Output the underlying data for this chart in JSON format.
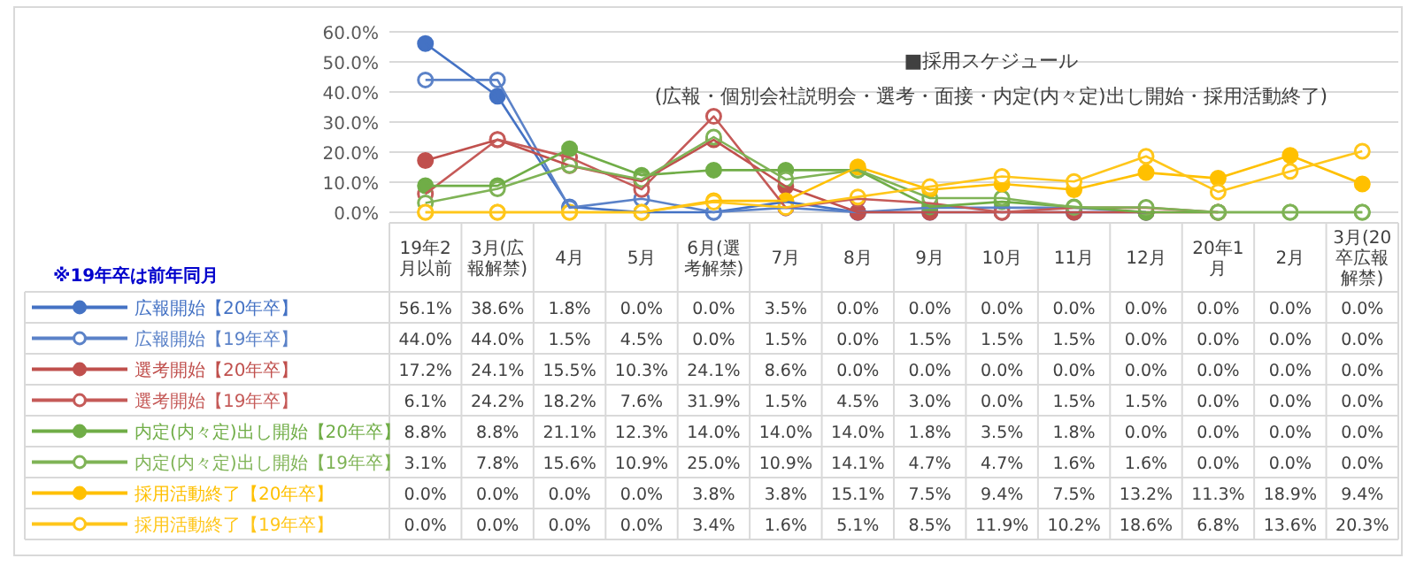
{
  "chart_data": {
    "type": "line",
    "title": "■採用スケジュール",
    "subtitle": "(広報・個別会社説明会・選考・面接・内定(内々定)出し開始・採用活動終了)",
    "annotations": [
      "※19年卒は前年同月"
    ],
    "categories": [
      "19年2月以前",
      "3月(広報解禁)",
      "4月",
      "5月",
      "6月(選考解禁)",
      "7月",
      "8月",
      "9月",
      "10月",
      "11月",
      "12月",
      "20年1月",
      "2月",
      "3月(20卒広報解禁)"
    ],
    "ylim": [
      0,
      60
    ],
    "yticks": [
      {
        "value": 0,
        "label": "0.0%"
      },
      {
        "value": 10,
        "label": "10.0%"
      },
      {
        "value": 20,
        "label": "20.0%"
      },
      {
        "value": 30,
        "label": "30.0%"
      },
      {
        "value": 40,
        "label": "40.0%"
      },
      {
        "value": 50,
        "label": "50.0%"
      },
      {
        "value": 60,
        "label": "60.0%"
      }
    ],
    "grid": "y",
    "legend": "bottom",
    "marker": "circle",
    "series": [
      {
        "name": "広報開始【20年卒】",
        "color": "#4472c4",
        "values": [
          56.1,
          38.6,
          1.8,
          0.0,
          0.0,
          3.5,
          0.0,
          0.0,
          0.0,
          0.0,
          0.0,
          null,
          null,
          null
        ],
        "value_labels": [
          "56.1%",
          "38.6%",
          "1.8%",
          "0.0%",
          "0.0%",
          "3.5%",
          "0.0%",
          "0.0%",
          "0.0%",
          "0.0%",
          "0.0%",
          "0.0%",
          "0.0%",
          "0.0%"
        ]
      },
      {
        "name": "広報開始【19年卒】",
        "color": "#5b82c8",
        "values": [
          44.0,
          44.0,
          1.5,
          4.5,
          0.0,
          1.5,
          0.0,
          1.5,
          1.5,
          1.5,
          0.0,
          null,
          null,
          null
        ],
        "value_labels": [
          "44.0%",
          "44.0%",
          "1.5%",
          "4.5%",
          "0.0%",
          "1.5%",
          "0.0%",
          "1.5%",
          "1.5%",
          "1.5%",
          "0.0%",
          "0.0%",
          "0.0%",
          "0.0%"
        ]
      },
      {
        "name": "選考開始【20年卒】",
        "color": "#c0504d",
        "values": [
          17.2,
          24.1,
          15.5,
          10.3,
          24.1,
          8.6,
          0.0,
          0.0,
          0.0,
          0.0,
          0.0,
          0.0,
          null,
          null
        ],
        "value_labels": [
          "17.2%",
          "24.1%",
          "15.5%",
          "10.3%",
          "24.1%",
          "8.6%",
          "0.0%",
          "0.0%",
          "0.0%",
          "0.0%",
          "0.0%",
          "0.0%",
          "0.0%",
          "0.0%"
        ]
      },
      {
        "name": "選考開始【19年卒】",
        "color": "#c55a58",
        "values": [
          6.1,
          24.2,
          18.2,
          7.6,
          31.9,
          1.5,
          4.5,
          3.0,
          0.0,
          1.5,
          1.5,
          0.0,
          null,
          null
        ],
        "value_labels": [
          "6.1%",
          "24.2%",
          "18.2%",
          "7.6%",
          "31.9%",
          "1.5%",
          "4.5%",
          "3.0%",
          "0.0%",
          "1.5%",
          "1.5%",
          "0.0%",
          "0.0%",
          "0.0%"
        ]
      },
      {
        "name": "内定(内々定)出し開始【20年卒】",
        "color": "#70ad47",
        "values": [
          8.8,
          8.8,
          21.1,
          12.3,
          14.0,
          14.0,
          14.0,
          1.8,
          3.5,
          1.8,
          0.0,
          0.0,
          0.0,
          0.0
        ],
        "value_labels": [
          "8.8%",
          "8.8%",
          "21.1%",
          "12.3%",
          "14.0%",
          "14.0%",
          "14.0%",
          "1.8%",
          "3.5%",
          "1.8%",
          "0.0%",
          "0.0%",
          "0.0%",
          "0.0%"
        ]
      },
      {
        "name": "内定(内々定)出し開始【19年卒】",
        "color": "#7fb356",
        "values": [
          3.1,
          7.8,
          15.6,
          10.9,
          25.0,
          10.9,
          14.1,
          4.7,
          4.7,
          1.6,
          1.6,
          0.0,
          0.0,
          0.0
        ],
        "value_labels": [
          "3.1%",
          "7.8%",
          "15.6%",
          "10.9%",
          "25.0%",
          "10.9%",
          "14.1%",
          "4.7%",
          "4.7%",
          "1.6%",
          "1.6%",
          "0.0%",
          "0.0%",
          "0.0%"
        ]
      },
      {
        "name": "採用活動終了【20年卒】",
        "color": "#ffc000",
        "values": [
          0.0,
          0.0,
          0.0,
          0.0,
          3.8,
          3.8,
          15.1,
          7.5,
          9.4,
          7.5,
          13.2,
          11.3,
          18.9,
          9.4
        ],
        "value_labels": [
          "0.0%",
          "0.0%",
          "0.0%",
          "0.0%",
          "3.8%",
          "3.8%",
          "15.1%",
          "7.5%",
          "9.4%",
          "7.5%",
          "13.2%",
          "11.3%",
          "18.9%",
          "9.4%"
        ]
      },
      {
        "name": "採用活動終了【19年卒】",
        "color": "#ffc61a",
        "values": [
          0.0,
          0.0,
          0.0,
          0.0,
          3.4,
          1.6,
          5.1,
          8.5,
          11.9,
          10.2,
          18.6,
          6.8,
          13.6,
          20.3
        ],
        "value_labels": [
          "0.0%",
          "0.0%",
          "0.0%",
          "0.0%",
          "3.4%",
          "1.6%",
          "5.1%",
          "8.5%",
          "11.9%",
          "10.2%",
          "18.6%",
          "6.8%",
          "13.6%",
          "20.3%"
        ]
      }
    ]
  }
}
